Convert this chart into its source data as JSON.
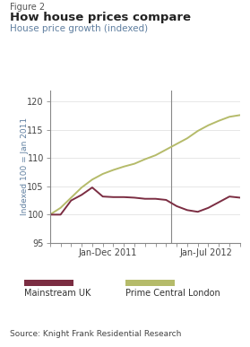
{
  "figure_label": "Figure 2",
  "title": "How house prices compare",
  "subtitle": "House price growth (indexed)",
  "ylabel": "Indexed 100 = Jan 2011",
  "ylim": [
    95,
    122
  ],
  "yticks": [
    95,
    100,
    105,
    110,
    115,
    120
  ],
  "source": "Source: Knight Frank Residential Research",
  "legend_mainstream": "Mainstream UK",
  "legend_prime": "Prime Central London",
  "mainstream_color": "#7b2d42",
  "prime_color": "#b5bb6a",
  "subtitle_color": "#5f7fa0",
  "mainstream_x": [
    0,
    1,
    2,
    3,
    4,
    5,
    6,
    7,
    8,
    9,
    10,
    11,
    12,
    13,
    14,
    15,
    16,
    17,
    18
  ],
  "mainstream_y": [
    100.0,
    100.0,
    102.5,
    103.5,
    104.8,
    103.2,
    103.1,
    103.1,
    103.0,
    102.8,
    102.8,
    102.6,
    101.5,
    100.8,
    100.5,
    101.2,
    102.2,
    103.2,
    103.0
  ],
  "prime_x": [
    0,
    1,
    2,
    3,
    4,
    5,
    6,
    7,
    8,
    9,
    10,
    11,
    12,
    13,
    14,
    15,
    16,
    17,
    18
  ],
  "prime_y": [
    100.0,
    101.2,
    103.0,
    104.8,
    106.2,
    107.2,
    107.9,
    108.5,
    109.0,
    109.8,
    110.5,
    111.5,
    112.5,
    113.5,
    114.8,
    115.8,
    116.6,
    117.3,
    117.6
  ],
  "n_points": 19,
  "xlim": [
    0,
    18
  ],
  "jan2012_x": 11.5,
  "x_label_jan_dec": 5.5,
  "x_label_jan_jul": 14.8
}
